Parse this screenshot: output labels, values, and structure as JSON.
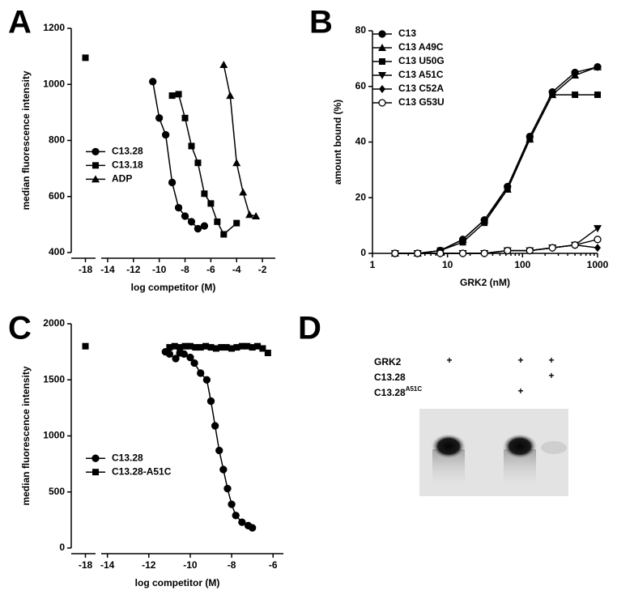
{
  "chart_data": [
    {
      "type": "line",
      "panel": "A",
      "xlabel": "log competitor (M)",
      "ylabel": "median fluorescence intensity",
      "xlim": [
        -18.7,
        -1
      ],
      "xbreak": [
        -17.5,
        -14.5
      ],
      "xticks": [
        -18,
        -14,
        -12,
        -10,
        -8,
        -6,
        -4,
        -2
      ],
      "ylim": [
        400,
        1200
      ],
      "yticks": [
        400,
        600,
        800,
        1000,
        1200
      ],
      "legend": "center-left",
      "series": [
        {
          "name": "C13.28",
          "color": "#000000",
          "marker": "circle",
          "x": [
            -10.5,
            -10,
            -9.5,
            -9,
            -8.5,
            -8,
            -7.5,
            -7,
            -6.5
          ],
          "y": [
            1010,
            880,
            820,
            650,
            560,
            530,
            510,
            485,
            495
          ]
        },
        {
          "name": "C13.18",
          "color": "#000000",
          "marker": "square",
          "x": [
            -18,
            -9,
            -8.5,
            -8,
            -7.5,
            -7,
            -6.5,
            -6,
            -5.5,
            -5,
            -4
          ],
          "y": [
            1095,
            960,
            965,
            880,
            780,
            720,
            610,
            575,
            510,
            465,
            505
          ]
        },
        {
          "name": "ADP",
          "color": "#000000",
          "marker": "triangle",
          "x": [
            -5,
            -4.5,
            -4,
            -3.5,
            -3,
            -2.5
          ],
          "y": [
            1070,
            960,
            720,
            615,
            535,
            530
          ]
        }
      ]
    },
    {
      "type": "line",
      "panel": "B",
      "xlabel": "GRK2 (nM)",
      "ylabel": "amount bound (%)",
      "xlog": true,
      "xlim": [
        1,
        1000
      ],
      "xticks": [
        1,
        10,
        100,
        1000
      ],
      "ylim": [
        0,
        80
      ],
      "yticks": [
        0,
        20,
        40,
        60,
        80
      ],
      "legend": "upper-left",
      "x": [
        2,
        4,
        8,
        16,
        31,
        63,
        125,
        250,
        500,
        1000
      ],
      "series": [
        {
          "name": "C13",
          "color": "#000000",
          "marker": "circle",
          "y": [
            0,
            0,
            1,
            5,
            12,
            24,
            42,
            58,
            65,
            67
          ]
        },
        {
          "name": "C13 A49C",
          "color": "#000000",
          "marker": "triangle",
          "y": [
            0,
            0,
            1,
            5,
            12,
            23,
            41,
            57,
            64,
            67
          ]
        },
        {
          "name": "C13 U50G",
          "color": "#000000",
          "marker": "square",
          "y": [
            0,
            0,
            1,
            4,
            11,
            23,
            41,
            57,
            57,
            57
          ]
        },
        {
          "name": "C13 A51C",
          "color": "#000000",
          "marker": "triangle-down",
          "y": [
            0,
            0,
            0,
            0,
            0,
            1,
            1,
            2,
            3,
            9
          ]
        },
        {
          "name": "C13 C52A",
          "color": "#000000",
          "marker": "diamond",
          "y": [
            0,
            0,
            0,
            0,
            0,
            1,
            1,
            2,
            3,
            2
          ]
        },
        {
          "name": "C13 G53U",
          "color": "#000000",
          "marker": "open-circle",
          "y": [
            0,
            0,
            0,
            0,
            0,
            1,
            1,
            2,
            3,
            5
          ]
        }
      ]
    },
    {
      "type": "line",
      "panel": "C",
      "xlabel": "log competitor (M)",
      "ylabel": "median fluorescence intensity",
      "xlim": [
        -18.7,
        -5.5
      ],
      "xbreak": [
        -17.5,
        -14.3
      ],
      "xticks": [
        -18,
        -14,
        -12,
        -10,
        -8,
        -6
      ],
      "ylim": [
        0,
        2000
      ],
      "yticks": [
        0,
        500,
        1000,
        1500,
        2000
      ],
      "legend": "lower-left",
      "series": [
        {
          "name": "C13.28",
          "color": "#000000",
          "marker": "circle",
          "x": [
            -11.2,
            -11,
            -10.7,
            -10.5,
            -10.3,
            -10,
            -9.8,
            -9.5,
            -9.2,
            -9,
            -8.8,
            -8.6,
            -8.4,
            -8.2,
            -8,
            -7.8,
            -7.5,
            -7.2,
            -7
          ],
          "y": [
            1750,
            1730,
            1690,
            1740,
            1730,
            1700,
            1650,
            1560,
            1500,
            1310,
            1090,
            870,
            700,
            530,
            390,
            290,
            230,
            200,
            180
          ]
        },
        {
          "name": "C13.28-A51C",
          "color": "#000000",
          "marker": "square",
          "x": [
            -18,
            -11,
            -10.75,
            -10.5,
            -10.25,
            -10,
            -9.75,
            -9.5,
            -9.25,
            -9,
            -8.75,
            -8.5,
            -8.25,
            -8,
            -7.75,
            -7.5,
            -7.25,
            -7,
            -6.75,
            -6.5,
            -6.25
          ],
          "y": [
            1800,
            1790,
            1800,
            1790,
            1800,
            1800,
            1790,
            1790,
            1800,
            1790,
            1780,
            1790,
            1790,
            1780,
            1790,
            1800,
            1800,
            1790,
            1800,
            1780,
            1740
          ]
        }
      ]
    }
  ],
  "gel": {
    "panel": "D",
    "rows": [
      {
        "label": "GRK2",
        "cells": [
          "+",
          "+",
          "+"
        ]
      },
      {
        "label": "C13.28",
        "cells": [
          null,
          null,
          "+"
        ]
      },
      {
        "label": "C13.28",
        "sup": "A51C",
        "cells": [
          null,
          "+",
          null
        ]
      }
    ]
  }
}
